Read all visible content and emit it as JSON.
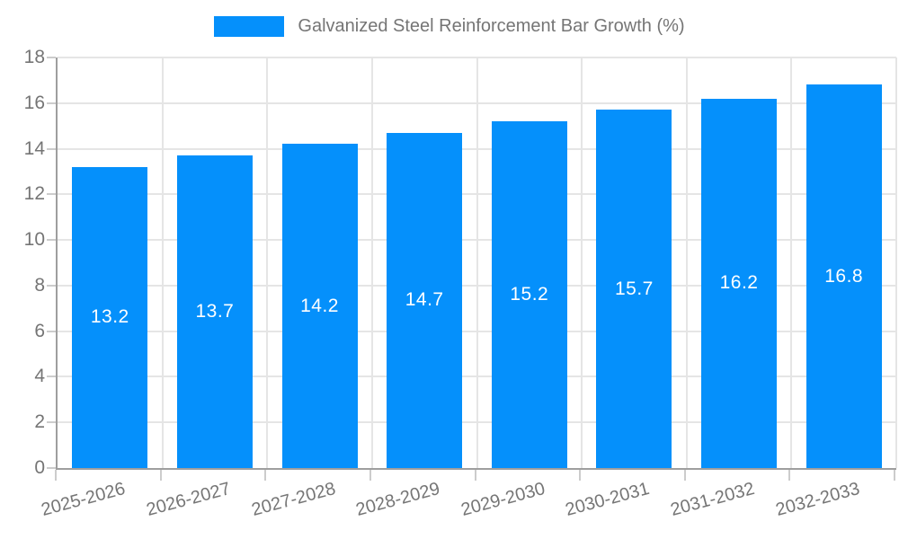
{
  "legend": {
    "label": "Galvanized Steel Reinforcement Bar Growth (%)"
  },
  "chart_data": {
    "type": "bar",
    "title": "Galvanized Steel Reinforcement Bar Growth (%)",
    "categories": [
      "2025-2026",
      "2026-2027",
      "2027-2028",
      "2028-2029",
      "2029-2030",
      "2030-2031",
      "2031-2032",
      "2032-2033"
    ],
    "values": [
      13.2,
      13.7,
      14.2,
      14.7,
      15.2,
      15.7,
      16.2,
      16.8
    ],
    "value_labels": [
      "13.2",
      "13.7",
      "14.2",
      "14.7",
      "15.2",
      "15.7",
      "16.2",
      "16.8"
    ],
    "xlabel": "",
    "ylabel": "",
    "ylim": [
      0,
      18
    ],
    "yticks": [
      0,
      2,
      4,
      6,
      8,
      10,
      12,
      14,
      16,
      18
    ],
    "grid": true,
    "legend_position": "top",
    "x_tick_rotation_deg": -15,
    "colors": {
      "bar": "#0590fb",
      "value_label": "#ffffff",
      "axis": "#9e9e9e",
      "grid": "#e5e5e5",
      "tick": "#cccccc",
      "text": "#757575",
      "background": "#ffffff"
    }
  }
}
